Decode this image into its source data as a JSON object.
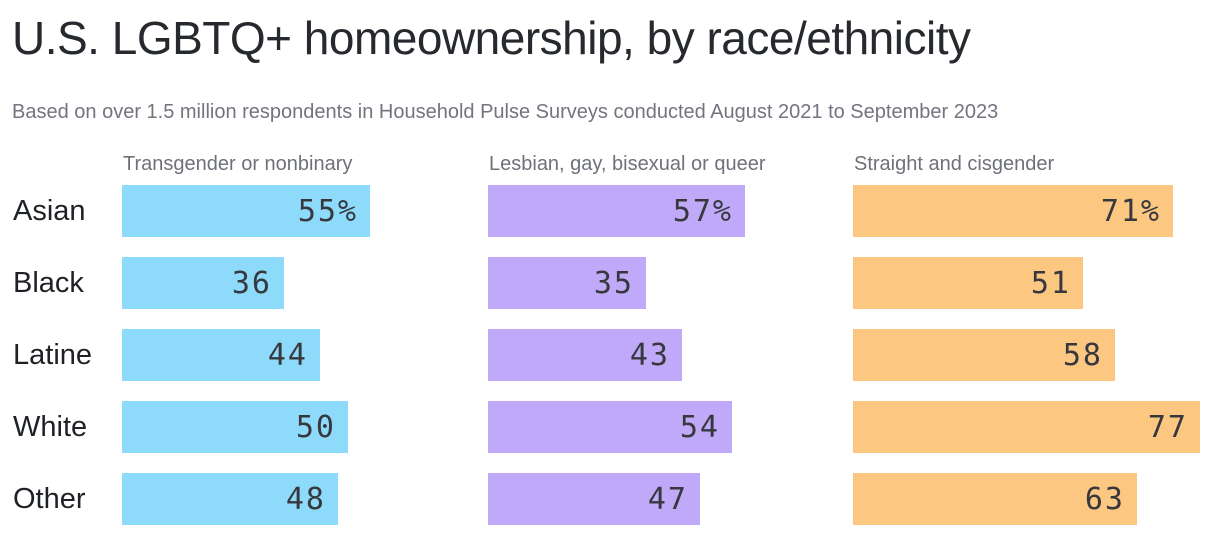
{
  "title": "U.S. LGBTQ+ homeownership, by race/ethnicity",
  "subtitle": "Based on over 1.5 million respondents in Household Pulse Surveys conducted August 2021 to September 2023",
  "colors": {
    "transgender_nonbinary_bar": "#8edafb",
    "lgbq_bar": "#c0a9f8",
    "straight_cisgender_bar": "#fbc781",
    "title_text": "#26292e",
    "muted_text": "#72757e",
    "value_text": "#36383d"
  },
  "chart_data": {
    "type": "bar",
    "orientation": "horizontal",
    "unit": "percent",
    "xlim": [
      0,
      80
    ],
    "grid": false,
    "legend_position": "column-headers-top",
    "title": "U.S. LGBTQ+ homeownership, by race/ethnicity",
    "subtitle": "Based on over 1.5 million respondents in Household Pulse Surveys conducted August 2021 to September 2023",
    "categories": [
      "Asian",
      "Black",
      "Latine",
      "White",
      "Other"
    ],
    "series": [
      {
        "name": "Transgender or nonbinary",
        "color": "#8edafb",
        "values": [
          55,
          36,
          44,
          50,
          48
        ],
        "labels": [
          "55%",
          "36",
          "44",
          "50",
          "48"
        ]
      },
      {
        "name": "Lesbian, gay, bisexual or queer",
        "color": "#c0a9f8",
        "values": [
          57,
          35,
          43,
          54,
          47
        ],
        "labels": [
          "57%",
          "35",
          "43",
          "54",
          "47"
        ]
      },
      {
        "name": "Straight and cisgender",
        "color": "#fbc781",
        "values": [
          71,
          51,
          58,
          77,
          63
        ],
        "labels": [
          "71%",
          "51",
          "58",
          "77",
          "63"
        ]
      }
    ]
  }
}
